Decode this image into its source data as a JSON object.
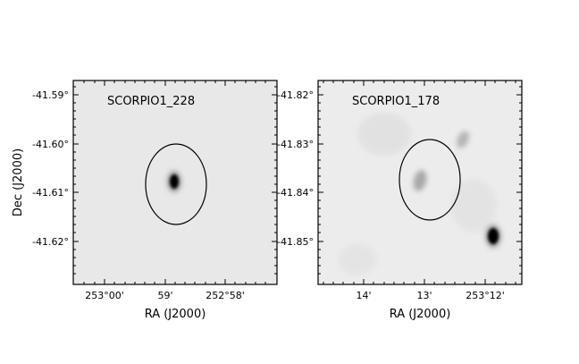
{
  "figure": {
    "ylabel": "Dec (J2000)",
    "panels": [
      {
        "title": "SCORPIO1_228",
        "xlabel": "RA (J2000)",
        "x_ticks": [
          "253°00'",
          "59'",
          "252°58'"
        ],
        "y_ticks": [
          "-41.59°",
          "-41.60°",
          "-41.61°",
          "-41.62°"
        ]
      },
      {
        "title": "SCORPIO1_178",
        "xlabel": "RA (J2000)",
        "x_ticks": [
          "14'",
          "13'",
          "253°12'"
        ],
        "y_ticks": [
          "-41.82°",
          "-41.83°",
          "-41.84°",
          "-41.85°"
        ]
      }
    ]
  },
  "colors": {
    "background": "#e8e8e8",
    "frame": "#000000",
    "source": "#000000"
  }
}
